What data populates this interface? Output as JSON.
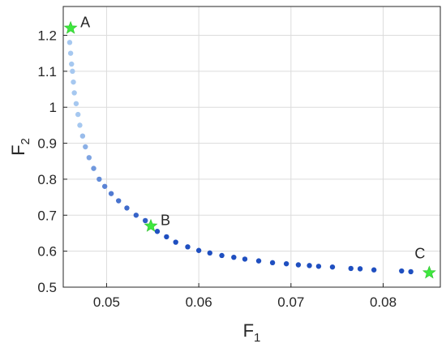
{
  "chart_data": {
    "type": "scatter",
    "xlabel": "F",
    "xlabel_subscript": "1",
    "ylabel": "F",
    "ylabel_subscript": "2",
    "xlim": [
      0.0453,
      0.0862
    ],
    "ylim": [
      0.5,
      1.28
    ],
    "x_ticks": [
      0.05,
      0.06,
      0.07,
      0.08
    ],
    "x_tick_labels": [
      "0.05",
      "0.06",
      "0.07",
      "0.08"
    ],
    "y_ticks": [
      0.5,
      0.6,
      0.7,
      0.8,
      0.9,
      1.0,
      1.1,
      1.2
    ],
    "y_tick_labels": [
      "0.5",
      "0.6",
      "0.7",
      "0.8",
      "0.9",
      "1",
      "1.1",
      "1.2"
    ],
    "grid": true,
    "colors": {
      "points_light": "#a6c8f0",
      "points_dark": "#1f4fc0",
      "star": "#3ee83e",
      "grid": "#dcdcdc",
      "axis": "#262626"
    },
    "series": [
      {
        "marker": "dot",
        "x": [
          0.046,
          0.0461,
          0.0462,
          0.0463,
          0.0464,
          0.0465,
          0.0467,
          0.0469,
          0.0471,
          0.0474,
          0.0477,
          0.0481,
          0.0486,
          0.0492,
          0.0498,
          0.0505,
          0.0513,
          0.0522,
          0.0532,
          0.0542,
          0.0548,
          0.0555,
          0.0565,
          0.0575,
          0.0588,
          0.06,
          0.0612,
          0.0625,
          0.0638,
          0.065,
          0.0665,
          0.068,
          0.0695,
          0.0708,
          0.072,
          0.073,
          0.0745,
          0.0765,
          0.0775,
          0.079,
          0.082,
          0.083
        ],
        "y": [
          1.18,
          1.15,
          1.12,
          1.1,
          1.07,
          1.04,
          1.01,
          0.98,
          0.95,
          0.92,
          0.89,
          0.86,
          0.83,
          0.8,
          0.78,
          0.76,
          0.74,
          0.72,
          0.7,
          0.685,
          0.67,
          0.655,
          0.64,
          0.625,
          0.612,
          0.602,
          0.595,
          0.588,
          0.583,
          0.578,
          0.573,
          0.568,
          0.565,
          0.562,
          0.56,
          0.558,
          0.556,
          0.552,
          0.551,
          0.548,
          0.545,
          0.543
        ]
      },
      {
        "marker": "star",
        "name": "A/B/C",
        "points": [
          {
            "label": "A",
            "x": 0.0461,
            "y": 1.22
          },
          {
            "label": "B",
            "x": 0.0548,
            "y": 0.67
          },
          {
            "label": "C",
            "x": 0.085,
            "y": 0.54
          }
        ]
      }
    ]
  }
}
